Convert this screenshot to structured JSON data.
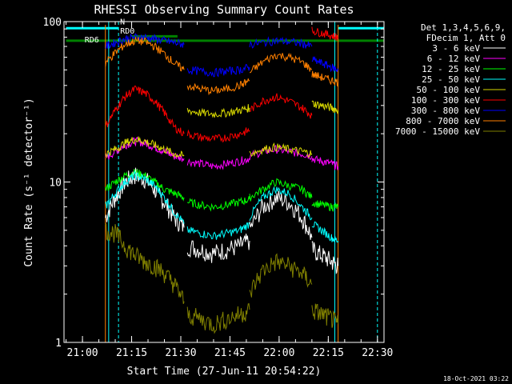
{
  "chart_data": {
    "type": "line",
    "title": "RHESSI Observing Summary Count Rates",
    "xlabel": "Start Time (27-Jun-11 20:54:22)",
    "ylabel": "Count Rate (s⁻¹ detector⁻¹)",
    "yscale": "log",
    "ylim": [
      1,
      100
    ],
    "xlim": [
      "20:54:22",
      "22:32:00"
    ],
    "x_ticks": [
      "21:00",
      "21:15",
      "21:30",
      "21:45",
      "22:00",
      "22:15",
      "22:30"
    ],
    "y_ticks": [
      "1",
      "10",
      "100"
    ],
    "legend_header": [
      "Det 1,3,4,5,6,9,",
      "FDecim 1, Att 0"
    ],
    "legend_position": "right",
    "timestamp": "18-Oct-2021 03:22",
    "annotations": [
      "N",
      "RD0",
      "RD6"
    ],
    "night_boundaries": [
      "21:08",
      "22:17"
    ],
    "saa_boundaries": [
      "21:11",
      "22:30"
    ],
    "data_gap_boundaries": [
      "21:07",
      "22:18"
    ],
    "series": [
      {
        "name": "3 - 6 keV",
        "color": "#ffffff",
        "segments": [
          {
            "x": [
              "21:07",
              "21:10",
              "21:13",
              "21:16",
              "21:19",
              "21:22",
              "21:25",
              "21:28",
              "21:31"
            ],
            "y": [
              6,
              8,
              10,
              11,
              10.5,
              9,
              7.5,
              6,
              5.2
            ]
          },
          {
            "x": [
              "21:32",
              "21:36",
              "21:40",
              "21:44",
              "21:48",
              "21:51"
            ],
            "y": [
              4,
              3.8,
              3.6,
              3.8,
              4,
              4.3
            ]
          },
          {
            "x": [
              "21:51",
              "21:55",
              "21:59",
              "22:03",
              "22:07",
              "22:10"
            ],
            "y": [
              5,
              7,
              8,
              7.5,
              6,
              4.5
            ]
          },
          {
            "x": [
              "22:10",
              "22:13",
              "22:16",
              "22:18"
            ],
            "y": [
              3.8,
              3.5,
              3.2,
              3
            ]
          }
        ]
      },
      {
        "name": "6 - 12 keV",
        "color": "#ff00ff",
        "segments": [
          {
            "x": [
              "21:07",
              "21:10",
              "21:13",
              "21:16",
              "21:19",
              "21:22",
              "21:25",
              "21:28",
              "21:31"
            ],
            "y": [
              14,
              15.5,
              17,
              18,
              17.5,
              16.5,
              15.5,
              14.5,
              14
            ]
          },
          {
            "x": [
              "21:32",
              "21:36",
              "21:40",
              "21:44",
              "21:48",
              "21:51"
            ],
            "y": [
              13.5,
              13,
              12.5,
              13,
              13.5,
              14
            ]
          },
          {
            "x": [
              "21:51",
              "21:55",
              "21:59",
              "22:03",
              "22:07",
              "22:10"
            ],
            "y": [
              14.5,
              15.5,
              16,
              15.5,
              15,
              14.5
            ]
          },
          {
            "x": [
              "22:10",
              "22:13",
              "22:16",
              "22:18"
            ],
            "y": [
              14,
              13.5,
              13,
              12.5
            ]
          }
        ]
      },
      {
        "name": "12 - 25 keV",
        "color": "#00ff00",
        "segments": [
          {
            "x": [
              "21:07",
              "21:10",
              "21:13",
              "21:16",
              "21:19",
              "21:22",
              "21:25",
              "21:28",
              "21:31"
            ],
            "y": [
              9,
              10,
              11,
              11.5,
              11,
              10,
              9,
              8.5,
              8
            ]
          },
          {
            "x": [
              "21:32",
              "21:36",
              "21:40",
              "21:44",
              "21:48",
              "21:51"
            ],
            "y": [
              7.5,
              7.2,
              7,
              7.2,
              7.5,
              7.8
            ]
          },
          {
            "x": [
              "21:51",
              "21:55",
              "21:59",
              "22:03",
              "22:07",
              "22:10"
            ],
            "y": [
              8,
              9,
              10,
              9.5,
              9,
              8
            ]
          },
          {
            "x": [
              "22:10",
              "22:13",
              "22:16",
              "22:18"
            ],
            "y": [
              7.5,
              7.2,
              7,
              7
            ]
          }
        ]
      },
      {
        "name": "25 - 50 keV",
        "color": "#00ffff",
        "segments": [
          {
            "x": [
              "21:07",
              "21:10",
              "21:13",
              "21:16",
              "21:19",
              "21:22",
              "21:25",
              "21:28",
              "21:31"
            ],
            "y": [
              7,
              8.5,
              10,
              11,
              10.5,
              9.5,
              8,
              6.5,
              5.5
            ]
          },
          {
            "x": [
              "21:32",
              "21:36",
              "21:40",
              "21:44",
              "21:48",
              "21:51"
            ],
            "y": [
              5,
              4.8,
              4.6,
              4.8,
              5,
              5.5
            ]
          },
          {
            "x": [
              "21:51",
              "21:55",
              "21:59",
              "22:03",
              "22:07",
              "22:10"
            ],
            "y": [
              6,
              8,
              9,
              8.5,
              7,
              6
            ]
          },
          {
            "x": [
              "22:10",
              "22:13",
              "22:16",
              "22:18"
            ],
            "y": [
              5.5,
              5,
              4.5,
              4.3
            ]
          }
        ]
      },
      {
        "name": "50 - 100 keV",
        "color": "#d8d800",
        "segments": [
          {
            "x": [
              "21:07",
              "21:10",
              "21:13",
              "21:16",
              "21:19",
              "21:22",
              "21:25",
              "21:28",
              "21:31"
            ],
            "y": [
              15,
              16,
              17.5,
              18.5,
              18,
              17,
              16,
              15,
              14.5
            ]
          },
          {
            "x": [
              "21:32",
              "21:36",
              "21:40",
              "21:44",
              "21:48",
              "21:51"
            ],
            "y": [
              28,
              27,
              26.5,
              27,
              28,
              29
            ]
          },
          {
            "x": [
              "21:51",
              "21:55",
              "21:59",
              "22:03",
              "22:07",
              "22:10"
            ],
            "y": [
              15,
              16,
              16.5,
              16,
              15.5,
              15
            ]
          },
          {
            "x": [
              "22:10",
              "22:13",
              "22:16",
              "22:18"
            ],
            "y": [
              31,
              30,
              29,
              28
            ]
          }
        ]
      },
      {
        "name": "100 - 300 keV",
        "color": "#ff0000",
        "segments": [
          {
            "x": [
              "21:07",
              "21:10",
              "21:13",
              "21:16",
              "21:19",
              "21:22",
              "21:25",
              "21:28",
              "21:31"
            ],
            "y": [
              22,
              28,
              34,
              38,
              36,
              32,
              27,
              22,
              20
            ]
          },
          {
            "x": [
              "21:32",
              "21:36",
              "21:40",
              "21:44",
              "21:48",
              "21:51"
            ],
            "y": [
              20,
              19,
              18.5,
              19,
              20,
              21
            ]
          },
          {
            "x": [
              "21:51",
              "21:55",
              "21:59",
              "22:03",
              "22:07",
              "22:10"
            ],
            "y": [
              28,
              32,
              34,
              32,
              29,
              26
            ]
          },
          {
            "x": [
              "22:10",
              "22:13",
              "22:16",
              "22:18"
            ],
            "y": [
              88,
              85,
              82,
              80
            ]
          }
        ]
      },
      {
        "name": "300 - 800 keV",
        "color": "#0000ff",
        "segments": [
          {
            "x": [
              "21:07",
              "21:10",
              "21:13",
              "21:16",
              "21:19",
              "21:22",
              "21:25",
              "21:28",
              "21:31"
            ],
            "y": [
              70,
              74,
              78,
              80,
              80,
              78,
              76,
              74,
              72
            ]
          },
          {
            "x": [
              "21:32",
              "21:36",
              "21:40",
              "21:44",
              "21:48",
              "21:51"
            ],
            "y": [
              50,
              49,
              48,
              49,
              50,
              52
            ]
          },
          {
            "x": [
              "21:51",
              "21:55",
              "21:59",
              "22:03",
              "22:07",
              "22:10"
            ],
            "y": [
              72,
              74,
              76,
              75,
              73,
              70
            ]
          },
          {
            "x": [
              "22:10",
              "22:13",
              "22:16",
              "22:18"
            ],
            "y": [
              58,
              55,
              52,
              50
            ]
          }
        ]
      },
      {
        "name": "800 - 7000 keV",
        "color": "#ff8000",
        "segments": [
          {
            "x": [
              "21:07",
              "21:10",
              "21:13",
              "21:16",
              "21:19",
              "21:22",
              "21:25",
              "21:28",
              "21:31"
            ],
            "y": [
              55,
              64,
              72,
              76,
              75,
              70,
              63,
              55,
              50
            ]
          },
          {
            "x": [
              "21:32",
              "21:36",
              "21:40",
              "21:44",
              "21:48",
              "21:51"
            ],
            "y": [
              40,
              38,
              37,
              38,
              40,
              43
            ]
          },
          {
            "x": [
              "21:51",
              "21:55",
              "21:59",
              "22:03",
              "22:07",
              "22:10"
            ],
            "y": [
              48,
              56,
              62,
              60,
              56,
              50
            ]
          },
          {
            "x": [
              "22:10",
              "22:13",
              "22:16",
              "22:18"
            ],
            "y": [
              47,
              45,
              43,
              42
            ]
          }
        ]
      },
      {
        "name": "7000 - 15000 keV",
        "color": "#808000",
        "segments": [
          {
            "x": [
              "21:07",
              "21:10",
              "21:13",
              "21:16",
              "21:19",
              "21:22",
              "21:25",
              "21:28",
              "21:31"
            ],
            "y": [
              5,
              4.8,
              4,
              3.5,
              3.2,
              3,
              2.7,
              2.3,
              1.8
            ]
          },
          {
            "x": [
              "21:32",
              "21:36",
              "21:40",
              "21:44",
              "21:48",
              "21:51"
            ],
            "y": [
              1.5,
              1.4,
              1.3,
              1.4,
              1.5,
              1.6
            ]
          },
          {
            "x": [
              "21:51",
              "21:55",
              "21:59",
              "22:03",
              "22:07",
              "22:10"
            ],
            "y": [
              2,
              2.8,
              3.2,
              3,
              2.7,
              2.3
            ]
          },
          {
            "x": [
              "22:10",
              "22:13",
              "22:16",
              "22:18"
            ],
            "y": [
              1.6,
              1.5,
              1.4,
              1.3
            ]
          }
        ]
      }
    ]
  }
}
